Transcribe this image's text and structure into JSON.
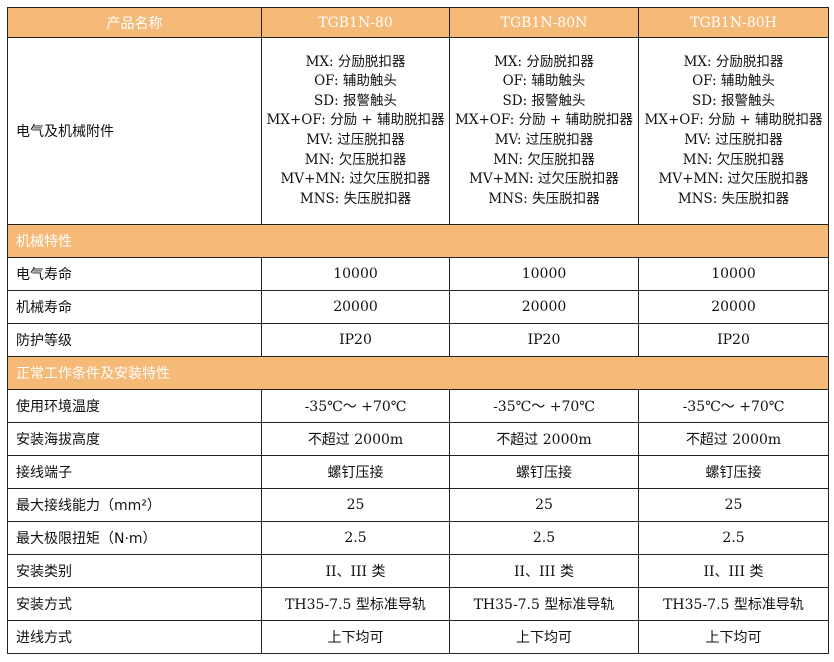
{
  "header": {
    "label": "产品名称",
    "models": [
      "TGB1N-80",
      "TGB1N-80N",
      "TGB1N-80H"
    ]
  },
  "accessories": {
    "label": "电气及机械附件",
    "items": [
      "MX: 分励脱扣器",
      "OF: 辅助触头",
      "SD: 报警触头",
      "MX+OF: 分励 + 辅助脱扣器",
      "MV: 过压脱扣器",
      "MN: 欠压脱扣器",
      "MV+MN: 过欠压脱扣器",
      "MNS: 失压脱扣器"
    ]
  },
  "sections": [
    {
      "title": "机械特性",
      "rows": [
        {
          "label": "电气寿命",
          "values": [
            "10000",
            "10000",
            "10000"
          ]
        },
        {
          "label": "机械寿命",
          "values": [
            "20000",
            "20000",
            "20000"
          ]
        },
        {
          "label": "防护等级",
          "values": [
            "IP20",
            "IP20",
            "IP20"
          ]
        }
      ]
    },
    {
      "title": "正常工作条件及安装特性",
      "rows": [
        {
          "label": "使用环境温度",
          "values": [
            "-35℃～ +70℃",
            "-35℃～ +70℃",
            "-35℃～ +70℃"
          ]
        },
        {
          "label": "安装海拔高度",
          "values": [
            "不超过 2000m",
            "不超过 2000m",
            "不超过 2000m"
          ]
        },
        {
          "label": "接线端子",
          "values": [
            "螺钉压接",
            "螺钉压接",
            "螺钉压接"
          ]
        },
        {
          "label": "最大接线能力（mm²）",
          "values": [
            "25",
            "25",
            "25"
          ]
        },
        {
          "label": "最大极限扭矩（N·m）",
          "values": [
            "2.5",
            "2.5",
            "2.5"
          ]
        },
        {
          "label": "安装类别",
          "values": [
            "II、III 类",
            "II、III 类",
            "II、III 类"
          ]
        },
        {
          "label": "安装方式",
          "values": [
            "TH35-7.5 型标准导轨",
            "TH35-7.5 型标准导轨",
            "TH35-7.5 型标准导轨"
          ]
        },
        {
          "label": "进线方式",
          "values": [
            "上下均可",
            "上下均可",
            "上下均可"
          ]
        }
      ]
    }
  ],
  "colors": {
    "header_bg": "#f5b978",
    "header_text": "#ffffff"
  }
}
